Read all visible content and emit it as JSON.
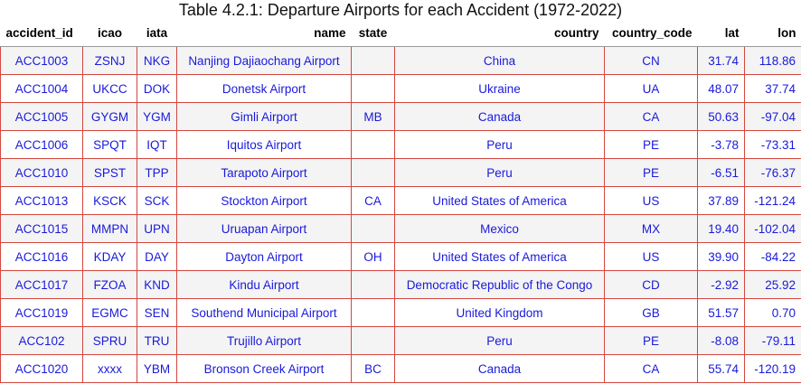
{
  "caption": "Table 4.2.1: Departure Airports for each Accident (1972-2022)",
  "columns": {
    "accident_id": "accident_id",
    "icao": "icao",
    "iata": "iata",
    "name": "name",
    "state": "state",
    "country": "country",
    "country_code": "country_code",
    "lat": "lat",
    "lon": "lon"
  },
  "rows": [
    {
      "accident_id": "ACC1003",
      "icao": "ZSNJ",
      "iata": "NKG",
      "name": "Nanjing Dajiaochang Airport",
      "state": "",
      "country": "China",
      "country_code": "CN",
      "lat": "31.74",
      "lon": "118.86"
    },
    {
      "accident_id": "ACC1004",
      "icao": "UKCC",
      "iata": "DOK",
      "name": "Donetsk Airport",
      "state": "",
      "country": "Ukraine",
      "country_code": "UA",
      "lat": "48.07",
      "lon": "37.74"
    },
    {
      "accident_id": "ACC1005",
      "icao": "GYGM",
      "iata": "YGM",
      "name": "Gimli Airport",
      "state": "MB",
      "country": "Canada",
      "country_code": "CA",
      "lat": "50.63",
      "lon": "-97.04"
    },
    {
      "accident_id": "ACC1006",
      "icao": "SPQT",
      "iata": "IQT",
      "name": "Iquitos Airport",
      "state": "",
      "country": "Peru",
      "country_code": "PE",
      "lat": "-3.78",
      "lon": "-73.31"
    },
    {
      "accident_id": "ACC1010",
      "icao": "SPST",
      "iata": "TPP",
      "name": "Tarapoto Airport",
      "state": "",
      "country": "Peru",
      "country_code": "PE",
      "lat": "-6.51",
      "lon": "-76.37"
    },
    {
      "accident_id": "ACC1013",
      "icao": "KSCK",
      "iata": "SCK",
      "name": "Stockton Airport",
      "state": "CA",
      "country": "United States of America",
      "country_code": "US",
      "lat": "37.89",
      "lon": "-121.24"
    },
    {
      "accident_id": "ACC1015",
      "icao": "MMPN",
      "iata": "UPN",
      "name": "Uruapan Airport",
      "state": "",
      "country": "Mexico",
      "country_code": "MX",
      "lat": "19.40",
      "lon": "-102.04"
    },
    {
      "accident_id": "ACC1016",
      "icao": "KDAY",
      "iata": "DAY",
      "name": "Dayton Airport",
      "state": "OH",
      "country": "United States of America",
      "country_code": "US",
      "lat": "39.90",
      "lon": "-84.22"
    },
    {
      "accident_id": "ACC1017",
      "icao": "FZOA",
      "iata": "KND",
      "name": "Kindu Airport",
      "state": "",
      "country": "Democratic Republic of the Congo",
      "country_code": "CD",
      "lat": "-2.92",
      "lon": "25.92"
    },
    {
      "accident_id": "ACC1019",
      "icao": "EGMC",
      "iata": "SEN",
      "name": "Southend Municipal Airport",
      "state": "",
      "country": "United Kingdom",
      "country_code": "GB",
      "lat": "51.57",
      "lon": "0.70"
    },
    {
      "accident_id": "ACC102",
      "icao": "SPRU",
      "iata": "TRU",
      "name": "Trujillo Airport",
      "state": "",
      "country": "Peru",
      "country_code": "PE",
      "lat": "-8.08",
      "lon": "-79.11"
    },
    {
      "accident_id": "ACC1020",
      "icao": "xxxx",
      "iata": "YBM",
      "name": "Bronson Creek Airport",
      "state": "BC",
      "country": "Canada",
      "country_code": "CA",
      "lat": "55.74",
      "lon": "-120.19"
    }
  ],
  "colors": {
    "cell_text": "#1a1adb",
    "cell_border": "#d4473f",
    "stripe": "#f4f4f4"
  }
}
